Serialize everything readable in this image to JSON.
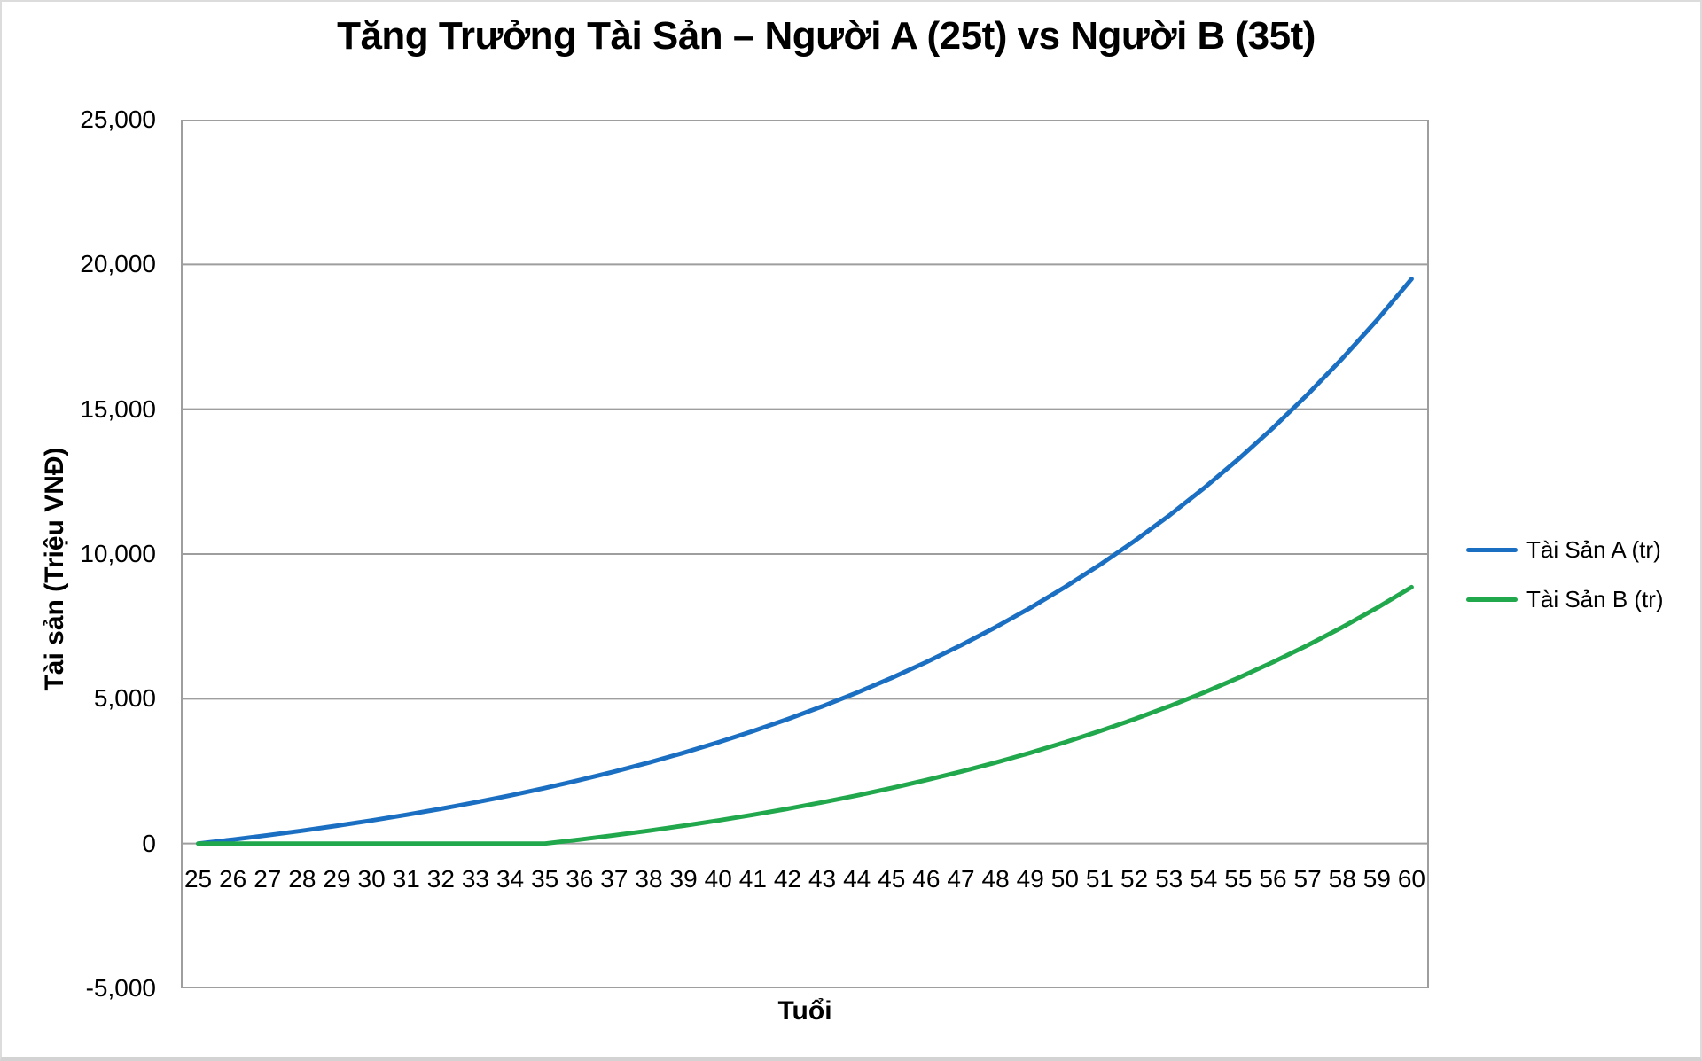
{
  "chart": {
    "title": "Tăng Trưởng Tài Sản – Người A (25t) vs Người B (35t)",
    "x_axis_title": "Tuổi",
    "y_axis_title": "Tài sản (Triệu VNĐ)"
  },
  "colors": {
    "series_a": "#1B6FC2",
    "series_b": "#21A84D",
    "gridline": "#9E9E9E",
    "text": "#000000",
    "chart_border": "#DCDCDC"
  },
  "chart_data": {
    "type": "line",
    "title": "Tăng Trưởng Tài Sản – Người A (25t) vs Người B (35t)",
    "xlabel": "Tuổi",
    "ylabel": "Tài sản (Triệu VNĐ)",
    "x": [
      25,
      26,
      27,
      28,
      29,
      30,
      31,
      32,
      33,
      34,
      35,
      36,
      37,
      38,
      39,
      40,
      41,
      42,
      43,
      44,
      45,
      46,
      47,
      48,
      49,
      50,
      51,
      52,
      53,
      54,
      55,
      56,
      57,
      58,
      59,
      60
    ],
    "series": [
      {
        "name": "Tài Sản A (tr)",
        "color": "#1B6FC2",
        "values": [
          0,
          138,
          286,
          444,
          614,
          795,
          990,
          1198,
          1421,
          1660,
          1916,
          2190,
          2483,
          2798,
          3134,
          3495,
          3881,
          4294,
          4737,
          5212,
          5720,
          6264,
          6846,
          7471,
          8139,
          8855,
          9621,
          10443,
          11322,
          12264,
          13273,
          14353,
          15510,
          16749,
          18076,
          19498
        ]
      },
      {
        "name": "Tài Sản B (tr)",
        "color": "#21A84D",
        "values": [
          0,
          0,
          0,
          0,
          0,
          0,
          0,
          0,
          0,
          0,
          0,
          138,
          286,
          444,
          614,
          795,
          990,
          1198,
          1421,
          1660,
          1916,
          2190,
          2483,
          2798,
          3134,
          3495,
          3881,
          4294,
          4737,
          5212,
          5720,
          6264,
          6846,
          7471,
          8139,
          8855
        ]
      }
    ],
    "ylim": [
      -5000,
      25000
    ],
    "y_ticks": [
      -5000,
      0,
      5000,
      10000,
      15000,
      20000,
      25000
    ],
    "y_tick_labels": [
      "-5,000",
      "0",
      "5,000",
      "10,000",
      "15,000",
      "20,000",
      "25,000"
    ],
    "grid": "horizontal",
    "legend_position": "right"
  }
}
